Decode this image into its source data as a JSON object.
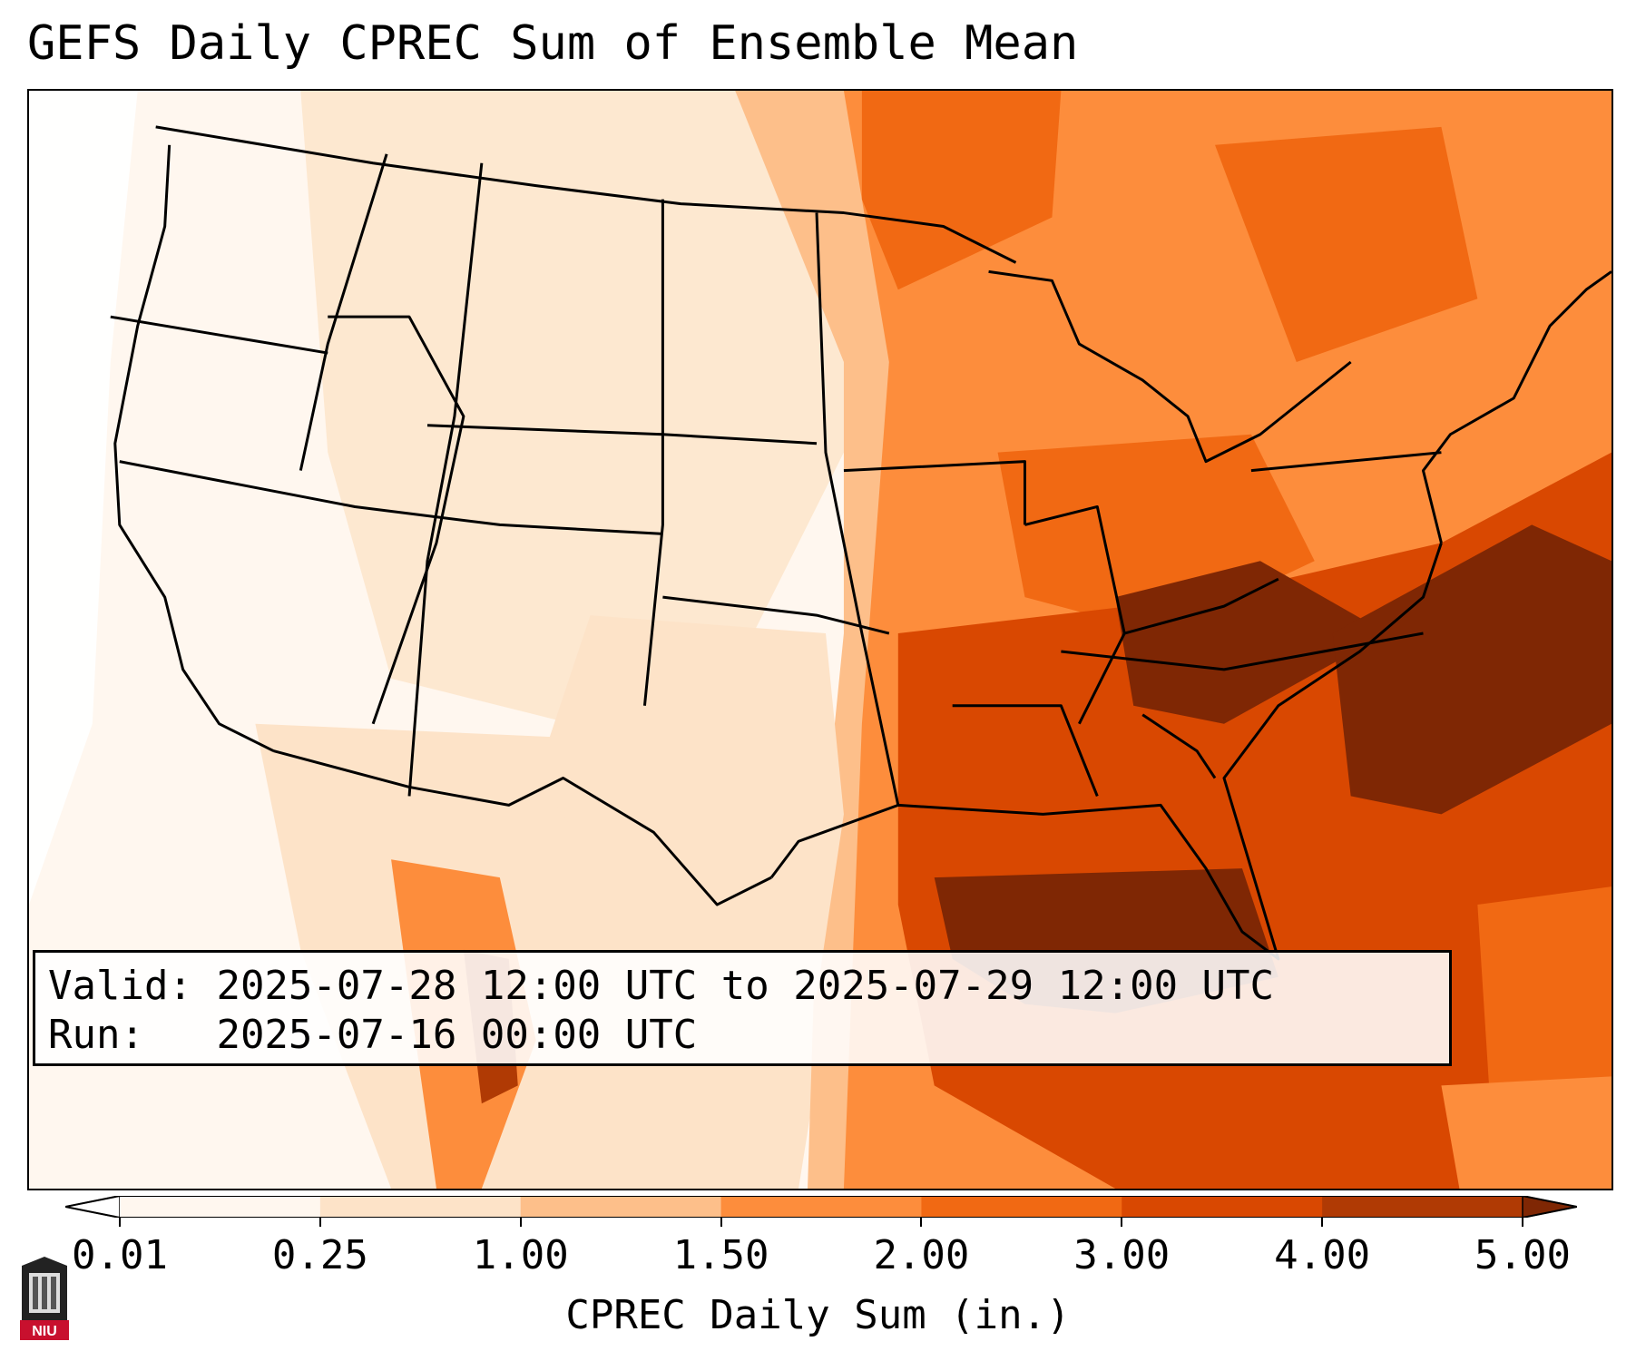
{
  "title": "GEFS Daily CPREC Sum of Ensemble Mean",
  "info": {
    "valid_label": "Valid:",
    "valid_value": "2025-07-28 12:00 UTC to 2025-07-29 12:00 UTC",
    "run_label": "Run:",
    "run_value": "2025-07-16 00:00 UTC"
  },
  "colorbar": {
    "label": "CPREC Daily Sum (in.)",
    "ticks": [
      "0.01",
      "0.25",
      "1.00",
      "1.50",
      "2.00",
      "3.00",
      "4.00",
      "5.00"
    ],
    "colors": [
      "#fff7ef",
      "#fde3c8",
      "#fdbf8a",
      "#fd8d3c",
      "#f16913",
      "#d94801",
      "#b03a04",
      "#7f2704"
    ]
  },
  "logo": {
    "text": "NIU",
    "icon": "niu-logo-icon",
    "color": "#c8102e"
  }
}
